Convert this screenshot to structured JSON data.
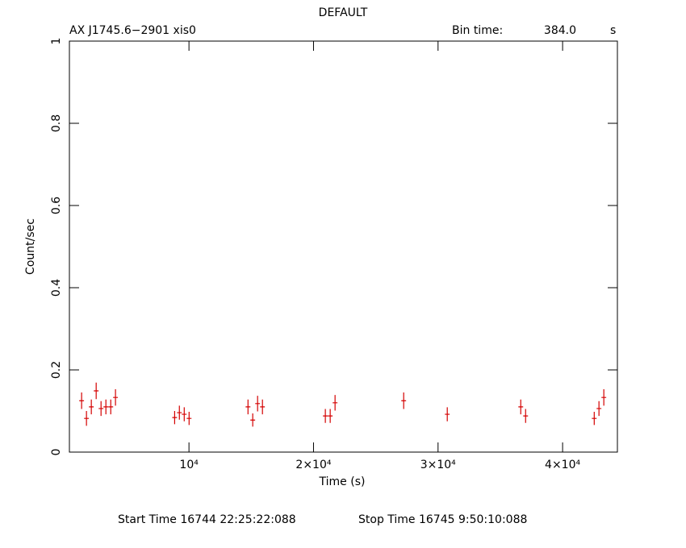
{
  "chart_data": {
    "type": "scatter",
    "title": "DEFAULT",
    "source": "AX J1745.6−2901  xis0",
    "bin_time_label": "Bin time:",
    "bin_time": {
      "value": 384,
      "label": "384.0"
    },
    "bin_time_unit": "s",
    "x_label": "Time (s)",
    "y_label": "Count/sec",
    "start_time": "Start Time 16744 22:25:22:088",
    "stop_time": "Stop Time 16745  9:50:10:088",
    "xlim": [
      400,
      44400
    ],
    "ylim": [
      0,
      1
    ],
    "xticks": [
      {
        "value": 10000,
        "label": "10⁴"
      },
      {
        "value": 20000,
        "label": "2×10⁴"
      },
      {
        "value": 30000,
        "label": "3×10⁴"
      },
      {
        "value": 40000,
        "label": "4×10⁴"
      }
    ],
    "yticks": [
      0,
      0.2,
      0.4,
      0.6,
      0.8,
      1
    ],
    "series": [
      {
        "color": "#d40000",
        "x": [
          1380,
          1770,
          2160,
          2550,
          2940,
          3330,
          3720,
          4100,
          8850,
          9230,
          9620,
          10010,
          14740,
          15120,
          15510,
          15900,
          20950,
          21340,
          21730,
          27240,
          30740,
          36640,
          37030,
          42540,
          42920,
          43310
        ],
        "values": [
          0.125,
          0.082,
          0.11,
          0.149,
          0.106,
          0.11,
          0.11,
          0.133,
          0.084,
          0.096,
          0.092,
          0.082,
          0.11,
          0.078,
          0.118,
          0.11,
          0.088,
          0.088,
          0.12,
          0.125,
          0.092,
          0.11,
          0.088,
          0.082,
          0.106,
          0.133
        ],
        "yerr": [
          0.02,
          0.018,
          0.018,
          0.02,
          0.018,
          0.018,
          0.018,
          0.02,
          0.016,
          0.017,
          0.017,
          0.016,
          0.018,
          0.016,
          0.019,
          0.018,
          0.017,
          0.017,
          0.019,
          0.02,
          0.017,
          0.018,
          0.017,
          0.016,
          0.018,
          0.02
        ]
      }
    ]
  }
}
